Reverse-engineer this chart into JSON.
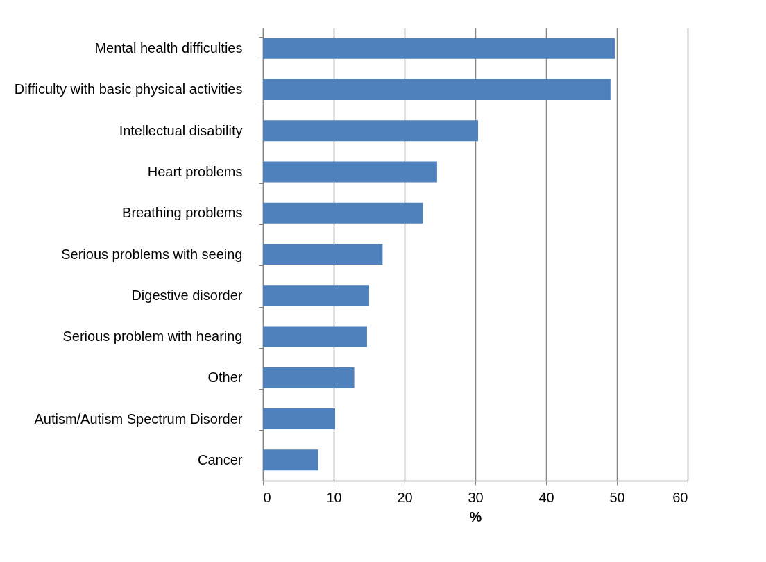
{
  "chart_data": {
    "type": "bar",
    "orientation": "horizontal",
    "xlabel": "%",
    "categories": [
      "Mental health difficulties",
      "Difficulty with basic physical activities",
      "Intellectual disability",
      "Heart problems",
      "Breathing problems",
      "Serious problems with seeing",
      "Digestive disorder",
      "Serious problem with hearing",
      "Other",
      "Autism/Autism Spectrum Disorder",
      "Cancer"
    ],
    "values": [
      49.7,
      49.1,
      30.4,
      24.6,
      22.6,
      16.9,
      15.0,
      14.7,
      12.9,
      10.2,
      7.8
    ],
    "color": "#4f81bd",
    "xlim": [
      0,
      60
    ],
    "xticks": [
      0,
      10,
      20,
      30,
      40,
      50,
      60
    ],
    "grid": "x"
  }
}
